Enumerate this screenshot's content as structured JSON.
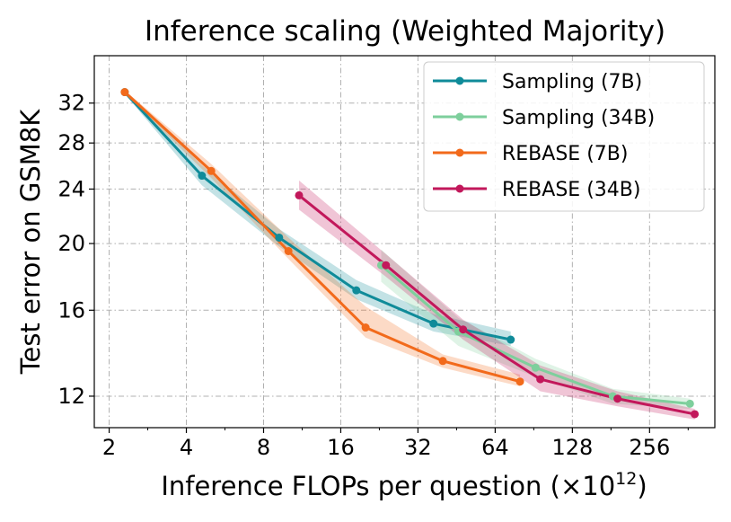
{
  "chart_data": {
    "type": "line",
    "title": "Inference scaling (Weighted Majority)",
    "xlabel": "Inference FLOPs per question",
    "xlabel_unit_base": "(×10",
    "xlabel_unit_exp": "12",
    "xlabel_unit_close": ")",
    "ylabel": "Test error on GSM8K",
    "xscale": "log2",
    "yscale": "log",
    "xlim": [
      1.75,
      460
    ],
    "ylim": [
      10.8,
      37.5
    ],
    "xticks": [
      2,
      4,
      8,
      16,
      32,
      64,
      128,
      256
    ],
    "xtick_labels": [
      "2",
      "4",
      "8",
      "16",
      "32",
      "64",
      "128",
      "256"
    ],
    "yticks": [
      12,
      16,
      20,
      24,
      28,
      32
    ],
    "ytick_labels": [
      "12",
      "16",
      "20",
      "24",
      "28",
      "32"
    ],
    "grid": true,
    "legend_position": "top-right",
    "series": [
      {
        "name": "Sampling (7B)",
        "color": "#0f8b99",
        "x": [
          2.3,
          4.6,
          9.2,
          18.4,
          36.8,
          73.6
        ],
        "y": [
          33.2,
          25.1,
          20.4,
          17.1,
          15.3,
          14.5
        ],
        "lower": [
          33.0,
          24.3,
          19.8,
          16.6,
          14.9,
          14.2
        ],
        "upper": [
          33.4,
          26.0,
          21.0,
          17.7,
          15.8,
          14.9
        ]
      },
      {
        "name": "Sampling (34B)",
        "color": "#7ecf9c",
        "x": [
          23,
          46,
          92,
          184,
          368
        ],
        "y": [
          18.6,
          14.9,
          13.2,
          12.0,
          11.7
        ],
        "lower": [
          17.6,
          14.2,
          12.8,
          11.7,
          11.5
        ],
        "upper": [
          19.6,
          15.6,
          13.6,
          12.3,
          11.9
        ]
      },
      {
        "name": "REBASE (7B)",
        "color": "#f26a1b",
        "x": [
          2.3,
          5.0,
          10.0,
          20.0,
          40.0,
          80.0
        ],
        "y": [
          33.2,
          25.5,
          19.5,
          15.1,
          13.5,
          12.6
        ],
        "lower": [
          33.0,
          24.9,
          19.0,
          14.6,
          13.2,
          12.4
        ],
        "upper": [
          33.4,
          26.1,
          20.4,
          16.2,
          13.8,
          12.9
        ]
      },
      {
        "name": "REBASE (34B)",
        "color": "#c2185b",
        "x": [
          11,
          24,
          48,
          96,
          192,
          384
        ],
        "y": [
          23.5,
          18.6,
          15.0,
          12.7,
          11.9,
          11.3
        ],
        "lower": [
          22.4,
          17.9,
          14.5,
          12.2,
          11.6,
          11.1
        ],
        "upper": [
          24.7,
          19.3,
          15.5,
          13.3,
          12.2,
          11.5
        ]
      }
    ]
  }
}
